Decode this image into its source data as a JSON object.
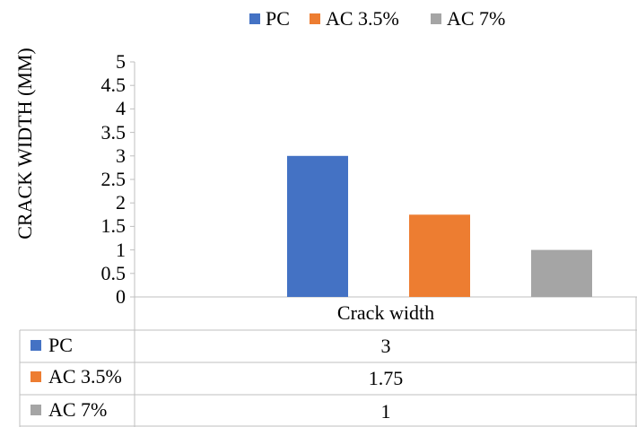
{
  "chart_data": {
    "type": "bar",
    "categories": [
      "Crack width"
    ],
    "series": [
      {
        "name": "PC",
        "values": [
          3
        ],
        "color": "#4472C4",
        "display": "3"
      },
      {
        "name": "AC 3.5%",
        "values": [
          1.75
        ],
        "color": "#ED7D31",
        "display": "1.75"
      },
      {
        "name": "AC 7%",
        "values": [
          1
        ],
        "color": "#A5A5A5",
        "display": "1"
      }
    ],
    "ylabel": "CRACK WIDTH (MM)",
    "ylim": [
      0,
      5
    ],
    "yticks": [
      "0",
      "0.5",
      "1",
      "1.5",
      "2",
      "2.5",
      "3",
      "3.5",
      "4",
      "4.5",
      "5"
    ],
    "legend_position": "top",
    "data_table": true,
    "grid": false
  }
}
